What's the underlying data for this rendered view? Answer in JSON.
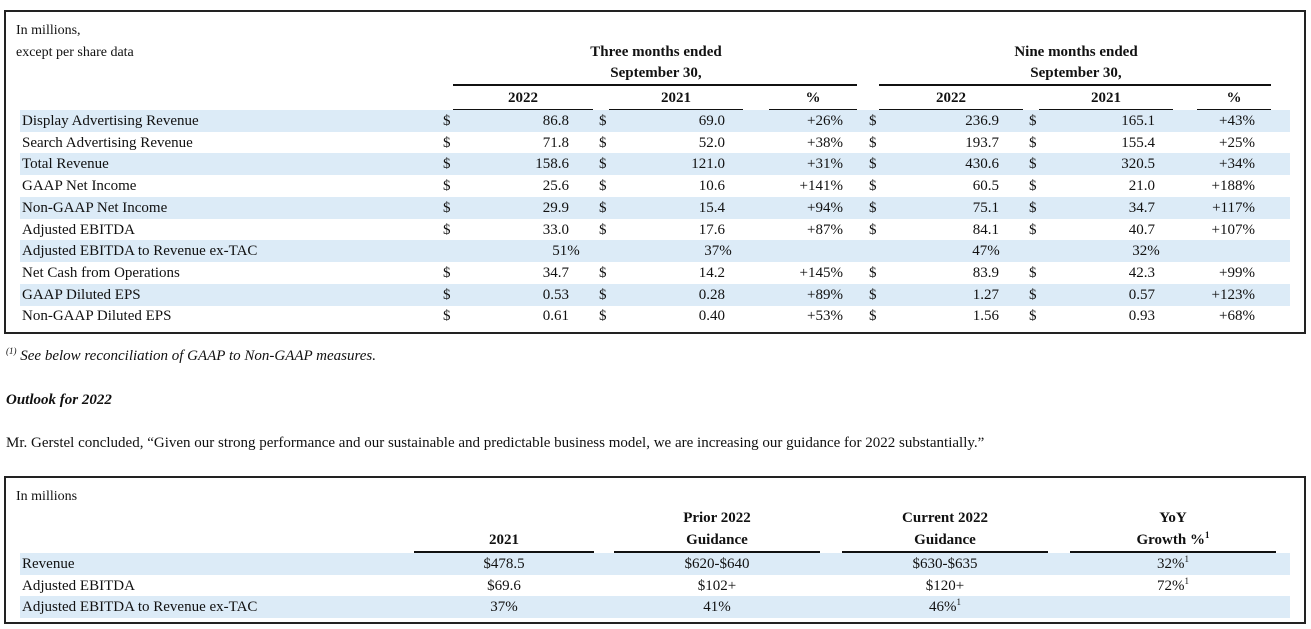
{
  "top_table": {
    "caption_line1": "In millions,",
    "caption_line2": "except per share data",
    "group1_line1": "Three months ended",
    "group1_line2": "September 30,",
    "group2_line1": "Nine months ended",
    "group2_line2": "September 30,",
    "col_headers": [
      "2022",
      "2021",
      "%",
      "2022",
      "2021",
      "%"
    ],
    "rows": [
      {
        "label": "Display Advertising Revenue",
        "shade": true,
        "d": [
          "$",
          "$",
          "$",
          "$"
        ],
        "v": [
          "86.8",
          "69.0",
          "+26%",
          "236.9",
          "165.1",
          "+43%"
        ]
      },
      {
        "label": "Search Advertising Revenue",
        "shade": false,
        "d": [
          "$",
          "$",
          "$",
          "$"
        ],
        "v": [
          "71.8",
          "52.0",
          "+38%",
          "193.7",
          "155.4",
          "+25%"
        ]
      },
      {
        "label": "Total Revenue",
        "shade": true,
        "d": [
          "$",
          "$",
          "$",
          "$"
        ],
        "v": [
          "158.6",
          "121.0",
          "+31%",
          "430.6",
          "320.5",
          "+34%"
        ]
      },
      {
        "label": "GAAP Net Income",
        "shade": false,
        "d": [
          "$",
          "$",
          "$",
          "$"
        ],
        "v": [
          "25.6",
          "10.6",
          "+141%",
          "60.5",
          "21.0",
          "+188%"
        ]
      },
      {
        "label": "Non-GAAP Net Income",
        "shade": true,
        "d": [
          "$",
          "$",
          "$",
          "$"
        ],
        "v": [
          "29.9",
          "15.4",
          "+94%",
          "75.1",
          "34.7",
          "+117%"
        ]
      },
      {
        "label": "Adjusted EBITDA",
        "shade": false,
        "d": [
          "$",
          "$",
          "$",
          "$"
        ],
        "v": [
          "33.0",
          "17.6",
          "+87%",
          "84.1",
          "40.7",
          "+107%"
        ]
      },
      {
        "label": "Adjusted EBITDA to Revenue ex-TAC",
        "shade": true,
        "d": [
          "",
          "",
          "",
          ""
        ],
        "v": [
          "51%",
          "37%",
          "",
          "47%",
          "32%",
          ""
        ]
      },
      {
        "label": "Net Cash from Operations",
        "shade": false,
        "d": [
          "$",
          "$",
          "$",
          "$"
        ],
        "v": [
          "34.7",
          "14.2",
          "+145%",
          "83.9",
          "42.3",
          "+99%"
        ]
      },
      {
        "label": "GAAP Diluted EPS",
        "shade": true,
        "d": [
          "$",
          "$",
          "$",
          "$"
        ],
        "v": [
          "0.53",
          "0.28",
          "+89%",
          "1.27",
          "0.57",
          "+123%"
        ]
      },
      {
        "label": "Non-GAAP Diluted EPS",
        "shade": false,
        "d": [
          "$",
          "$",
          "$",
          "$"
        ],
        "v": [
          "0.61",
          "0.40",
          "+53%",
          "1.56",
          "0.93",
          "+68%"
        ]
      }
    ]
  },
  "footnote": {
    "marker": "(1)",
    "text": " See below reconciliation of GAAP to Non-GAAP measures."
  },
  "outlook_heading": "Outlook for 2022",
  "quote": "Mr. Gerstel concluded, “Given our strong performance and our sustainable and predictable business model, we are increasing our guidance for 2022 substantially.”",
  "bottom_table": {
    "caption": "In millions",
    "headers": [
      {
        "line1": "",
        "line2": "2021"
      },
      {
        "line1": "Prior 2022",
        "line2": "Guidance"
      },
      {
        "line1": "Current 2022",
        "line2": "Guidance"
      },
      {
        "line1": "YoY",
        "line2": "Growth %",
        "sup": "1"
      }
    ],
    "rows": [
      {
        "label": "Revenue",
        "shade": true,
        "cells": [
          {
            "v": "$478.5",
            "sup": ""
          },
          {
            "v": "$620-$640",
            "sup": ""
          },
          {
            "v": "$630-$635",
            "sup": ""
          },
          {
            "v": "32%",
            "sup": "1"
          }
        ]
      },
      {
        "label": "Adjusted EBITDA",
        "shade": false,
        "cells": [
          {
            "v": "$69.6",
            "sup": ""
          },
          {
            "v": "$102+",
            "sup": ""
          },
          {
            "v": "$120+",
            "sup": ""
          },
          {
            "v": "72%",
            "sup": "1"
          }
        ]
      },
      {
        "label": "Adjusted EBITDA to Revenue ex-TAC",
        "shade": true,
        "cells": [
          {
            "v": "37%",
            "sup": ""
          },
          {
            "v": "41%",
            "sup": ""
          },
          {
            "v": "46%",
            "sup": "1"
          },
          {
            "v": "",
            "sup": ""
          }
        ]
      }
    ]
  }
}
